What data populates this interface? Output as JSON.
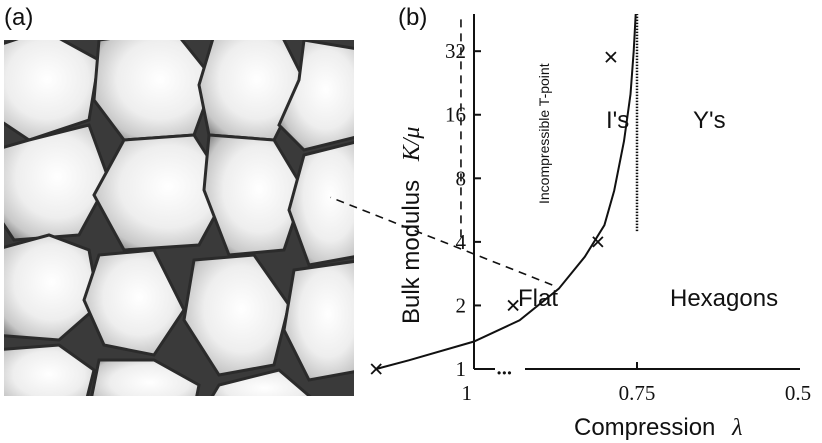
{
  "panels": {
    "a_label": "(a)",
    "b_label": "(b)"
  },
  "chart_data": {
    "type": "line",
    "xlabel_text": "Compression",
    "xlabel_symbol": "λ",
    "ylabel_text": "Bulk modulus",
    "ylabel_symbol": "K/μ",
    "x_ticks": [
      "1",
      "0.75",
      "0.5"
    ],
    "x_break": "•••",
    "y_ticks": [
      "1",
      "2",
      "4",
      "8",
      "16",
      "32"
    ],
    "yscale": "log2",
    "xlim": [
      1,
      0.5
    ],
    "ylim": [
      1,
      48
    ],
    "regions": [
      "Flat",
      "I's",
      "Y's",
      "Hexagons"
    ],
    "vertical_label": "Incompressible T-point",
    "series": [
      {
        "values": [
          {
            "x": 0.752,
            "y": 48
          },
          {
            "x": 0.755,
            "y": 32
          },
          {
            "x": 0.76,
            "y": 20
          },
          {
            "x": 0.77,
            "y": 12
          },
          {
            "x": 0.785,
            "y": 7
          },
          {
            "x": 0.8,
            "y": 4.8
          },
          {
            "x": 0.83,
            "y": 3.4
          },
          {
            "x": 0.87,
            "y": 2.4
          },
          {
            "x": 0.93,
            "y": 1.7
          },
          {
            "x": 1.0,
            "y": 1.35
          },
          {
            "x": 1.1,
            "y": 1.1
          },
          {
            "x": 1.15,
            "y": 1.0
          }
        ]
      }
    ],
    "markers": [
      {
        "x": 0.79,
        "y": 30
      },
      {
        "x": 0.81,
        "y": 4
      },
      {
        "x": 0.94,
        "y": 2
      },
      {
        "x": 1.15,
        "y": 1
      }
    ],
    "boundaries": [
      {
        "style": "dashed",
        "from": {
          "x": 1.02,
          "y": 4.2
        },
        "to": {
          "x": 1.02,
          "y": 48
        }
      },
      {
        "style": "dashed",
        "from": {
          "x": 0.88,
          "y": 2.5
        },
        "to": {
          "x": 1.22,
          "y": 6.5
        }
      },
      {
        "style": "dotted",
        "from": {
          "x": 0.75,
          "y": 4.5
        },
        "to": {
          "x": 0.75,
          "y": 48
        }
      }
    ]
  }
}
